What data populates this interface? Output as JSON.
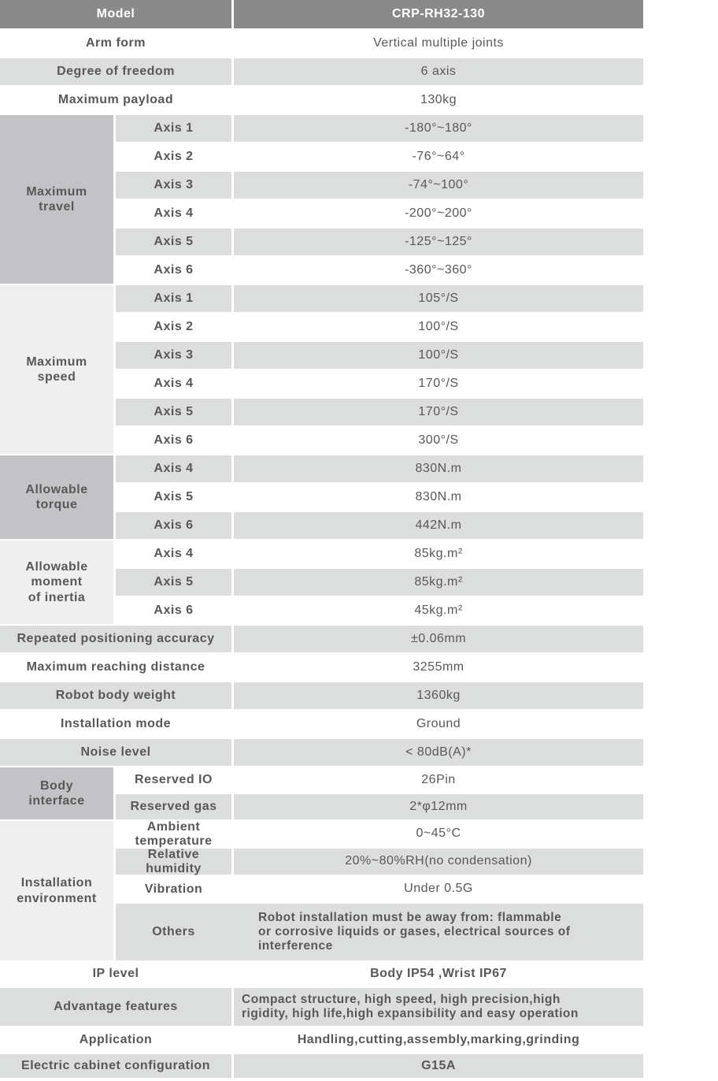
{
  "header": {
    "model_label": "Model",
    "model_value": "CRP-RH32-130"
  },
  "rows": {
    "arm_form": {
      "label": "Arm form",
      "value": "Vertical multiple joints"
    },
    "dof": {
      "label": "Degree of freedom",
      "value": "6 axis"
    },
    "payload": {
      "label": "Maximum payload",
      "value": "130kg"
    },
    "repeat_accuracy": {
      "label": "Repeated positioning accuracy",
      "value": "±0.06mm"
    },
    "reach": {
      "label": "Maximum reaching distance",
      "value": "3255mm"
    },
    "weight": {
      "label": "Robot body weight",
      "value": "1360kg"
    },
    "install_mode": {
      "label": "Installation mode",
      "value": "Ground"
    },
    "noise": {
      "label": "Noise level",
      "value": "< 80dB(A)*"
    },
    "ip": {
      "label": "IP level",
      "value": "Body IP54 ,Wrist IP67"
    },
    "advantage": {
      "label": "Advantage features",
      "value": "Compact structure, high speed, high precision,high\nrigidity, high life,high expansibility and easy operation"
    },
    "application": {
      "label": "Application",
      "value": "Handling,cutting,assembly,marking,grinding"
    },
    "cabinet": {
      "label": "Electric cabinet configuration",
      "value": "G15A"
    }
  },
  "groups": {
    "travel": {
      "label": "Maximum\ntravel",
      "rows": [
        {
          "label": "Axis 1",
          "value": "-180°~180°"
        },
        {
          "label": "Axis 2",
          "value": "-76°~64°"
        },
        {
          "label": "Axis 3",
          "value": "-74°~100°"
        },
        {
          "label": "Axis 4",
          "value": "-200°~200°"
        },
        {
          "label": "Axis 5",
          "value": "-125°~125°"
        },
        {
          "label": "Axis 6",
          "value": "-360°~360°"
        }
      ]
    },
    "speed": {
      "label": "Maximum\nspeed",
      "rows": [
        {
          "label": "Axis 1",
          "value": "105°/S"
        },
        {
          "label": "Axis 2",
          "value": "100°/S"
        },
        {
          "label": "Axis 3",
          "value": "100°/S"
        },
        {
          "label": "Axis 4",
          "value": "170°/S"
        },
        {
          "label": "Axis 5",
          "value": "170°/S"
        },
        {
          "label": "Axis 6",
          "value": "300°/S"
        }
      ]
    },
    "torque": {
      "label": "Allowable\ntorque",
      "rows": [
        {
          "label": "Axis 4",
          "value": "830N.m"
        },
        {
          "label": "Axis 5",
          "value": "830N.m"
        },
        {
          "label": "Axis 6",
          "value": "442N.m"
        }
      ]
    },
    "inertia": {
      "label": "Allowable\nmoment\nof inertia",
      "rows": [
        {
          "label": "Axis 4",
          "value": "85kg.m²"
        },
        {
          "label": "Axis 5",
          "value": "85kg.m²"
        },
        {
          "label": "Axis 6",
          "value": "45kg.m²"
        }
      ]
    },
    "body_interface": {
      "label": "Body\ninterface",
      "rows": [
        {
          "label": "Reserved IO",
          "value": "26Pin"
        },
        {
          "label": "Reserved gas",
          "value": "2*φ12mm"
        }
      ]
    },
    "environment": {
      "label": "Installation\nenvironment",
      "rows": [
        {
          "label": "Ambient\ntemperature",
          "value": "0~45°C"
        },
        {
          "label": "Relative\nhumidity",
          "value": "20%~80%RH(no condensation)"
        },
        {
          "label": "Vibration",
          "value": "Under 0.5G"
        },
        {
          "label": "Others",
          "value": "Robot installation must be away from: flammable\nor corrosive liquids or gases, electrical sources of\ninterference"
        }
      ]
    }
  },
  "colors": {
    "header_bg": "#8a8a8a",
    "header_text": "#ffffff",
    "group_dark": "#c3c3c5",
    "group_light": "#efefef",
    "row_gray": "#dcdddd",
    "body_text": "#58585a"
  }
}
